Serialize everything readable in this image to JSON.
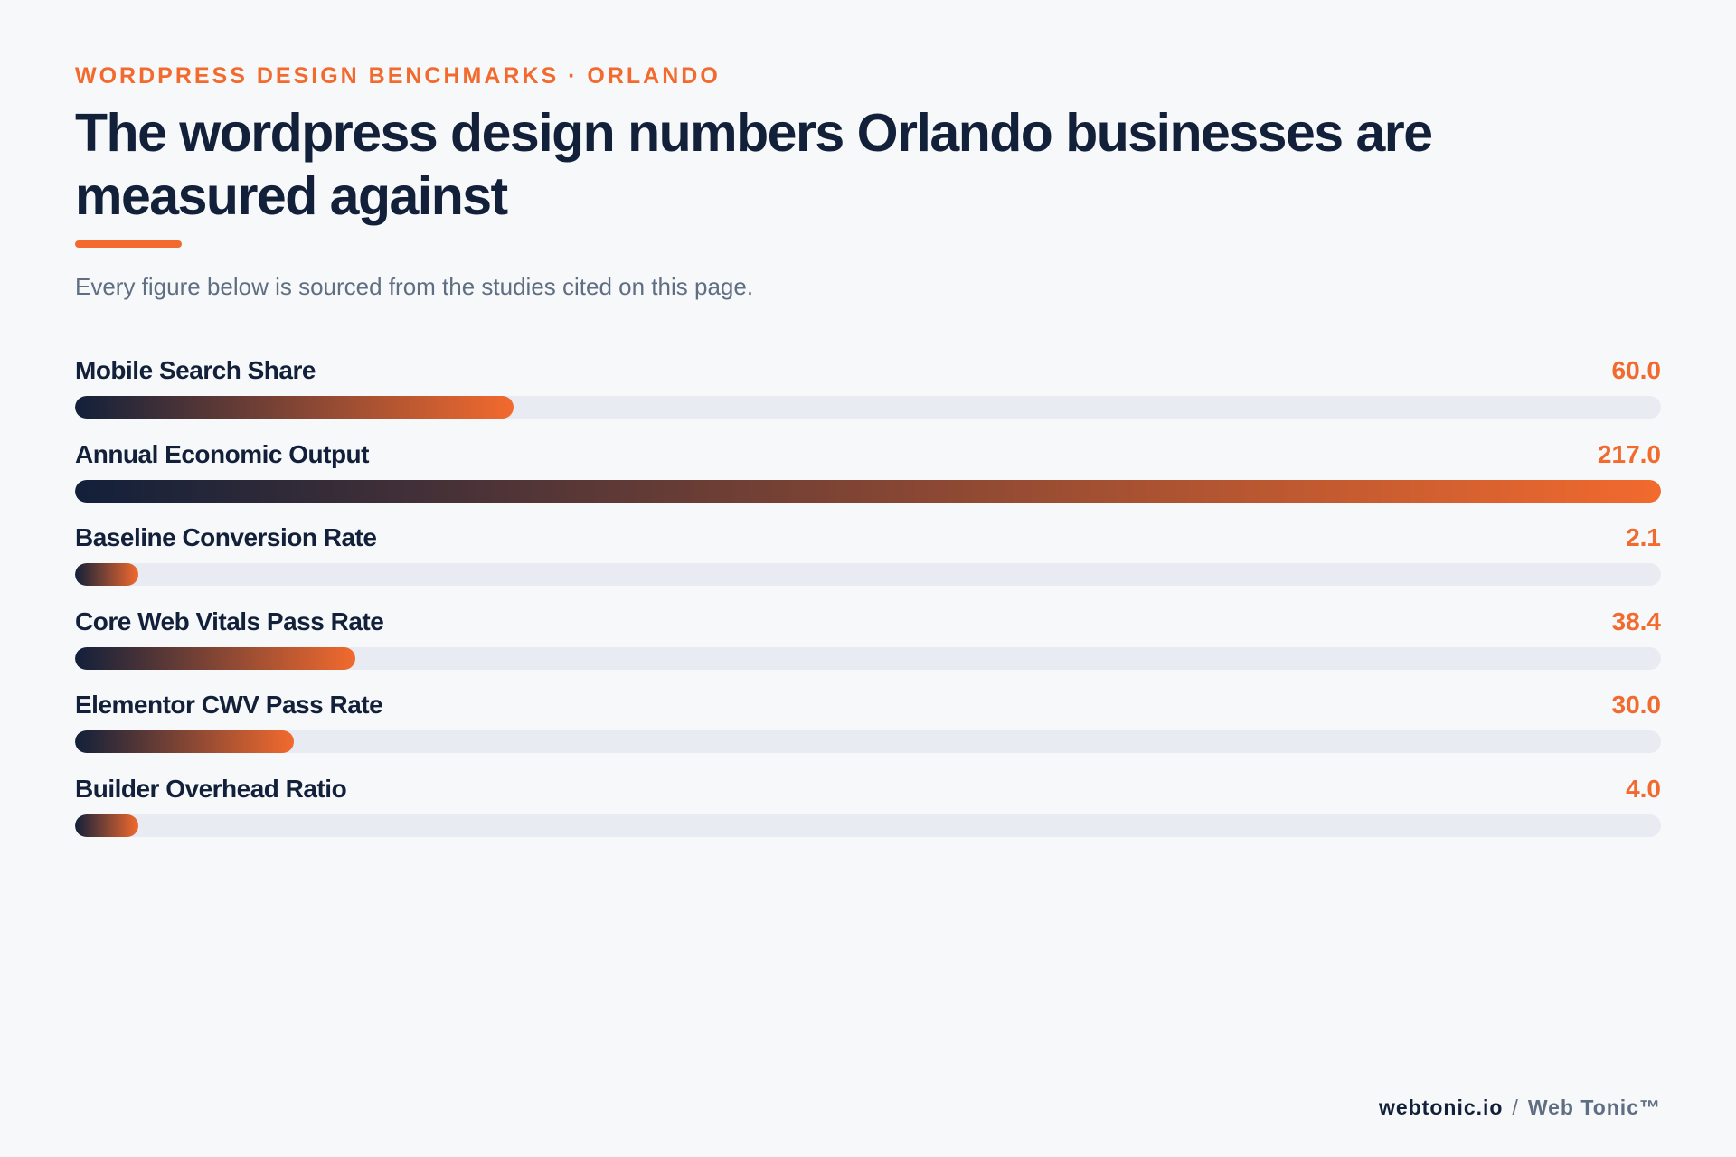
{
  "header": {
    "eyebrow": "WORDPRESS DESIGN BENCHMARKS · ORLANDO",
    "title": "The wordpress design numbers Orlando businesses are measured against",
    "subtitle": "Every figure below is sourced from the studies cited on this page."
  },
  "chart_data": {
    "type": "bar",
    "orientation": "horizontal",
    "title": "The wordpress design numbers Orlando businesses are measured against",
    "subtitle": "Every figure below is sourced from the studies cited on this page.",
    "categories": [
      "Mobile Search Share",
      "Annual Economic Output",
      "Baseline Conversion Rate",
      "Core Web Vitals Pass Rate",
      "Elementor CWV Pass Rate",
      "Builder Overhead Ratio"
    ],
    "values": [
      60.0,
      217.0,
      2.1,
      38.4,
      30.0,
      4.0
    ],
    "value_labels": [
      "60.0",
      "217.0",
      "2.1",
      "38.4",
      "30.0",
      "4.0"
    ],
    "xlim": [
      0,
      217
    ],
    "min_fill_fraction": 0.04,
    "grid": false,
    "legend": "none",
    "colors": {
      "bar_start": "#12203a",
      "bar_end": "#f26a2e",
      "track": "#e8ebf1",
      "value_text": "#f26a2e"
    }
  },
  "footer": {
    "domain": "webtonic.io",
    "separator": "/",
    "brand": "Web Tonic™"
  }
}
